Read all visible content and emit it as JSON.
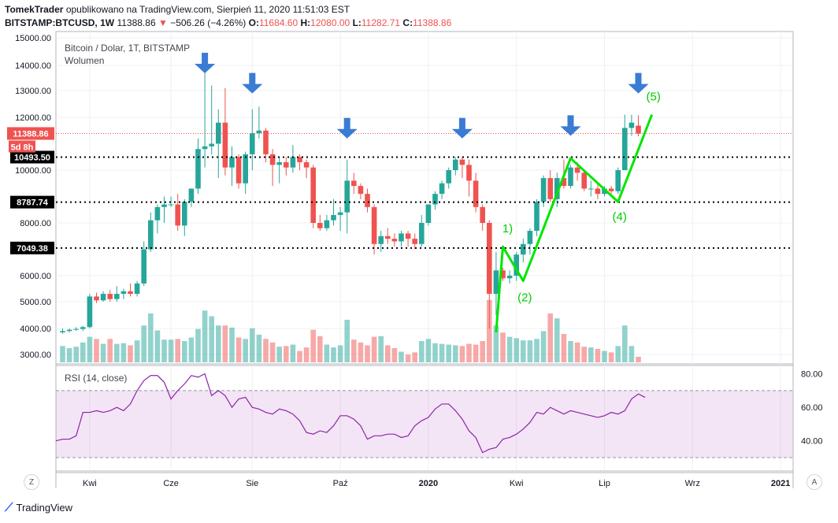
{
  "header": {
    "line1": "TomekTrader opublikowano na TradingView.com, Sierpień 11, 2020 11:51:03 EST",
    "author": "TomekTrader",
    "published": "opublikowano na TradingView.com, Sierpień 11, 2020 11:51:03 EST",
    "symbol": "BITSTAMP:BTCUSD, 1W",
    "price": "11388.86",
    "change": "−506.26 (−4.26%)",
    "open_label": "O:",
    "open": "11684.60",
    "high_label": "H:",
    "high": "12080.00",
    "low_label": "L:",
    "low": "11282.71",
    "close_label": "C:",
    "close": "11388.86"
  },
  "footer": {
    "brand": "TradingView"
  },
  "buttons": {
    "zoom": "Z",
    "auto": "A"
  },
  "chart_data": {
    "type": "candlestick",
    "legend": "Bitcoin / Dolar, 1T, BITSTAMP",
    "volume_label": "Wolumen",
    "ylim": [
      2650,
      15200
    ],
    "y_ticks": [
      3000,
      4000,
      5000,
      6000,
      8000,
      10000,
      12000,
      13000,
      14000,
      15000
    ],
    "y_tick_labels": [
      "3000.00",
      "4000.00",
      "5000.00",
      "6000.00",
      "8000.00",
      "10000.00",
      "12000.00",
      "13000.00",
      "14000.00",
      "15000.00"
    ],
    "levels": [
      {
        "value": 10493.5,
        "label": "10493.50"
      },
      {
        "value": 8787.74,
        "label": "8787.74"
      },
      {
        "value": 7049.38,
        "label": "7049.38"
      }
    ],
    "price_line": {
      "value": 11388.86,
      "label": "11388.86",
      "countdown": "5d 8h"
    },
    "x_ticks": [
      {
        "i": 4,
        "label": "Kwi"
      },
      {
        "i": 16,
        "label": "Cze"
      },
      {
        "i": 28,
        "label": "Sie"
      },
      {
        "i": 41,
        "label": "Paź"
      },
      {
        "i": 54,
        "label": "2020"
      },
      {
        "i": 67,
        "label": "Kwi"
      },
      {
        "i": 80,
        "label": "Lip"
      },
      {
        "i": 93,
        "label": "Wrz"
      },
      {
        "i": 106,
        "label": "2021"
      }
    ],
    "candles": [
      {
        "o": 3850,
        "h": 4000,
        "l": 3800,
        "c": 3900,
        "v": 0.23
      },
      {
        "o": 3900,
        "h": 4000,
        "l": 3850,
        "c": 3950,
        "v": 0.2
      },
      {
        "o": 3950,
        "h": 4050,
        "l": 3900,
        "c": 3980,
        "v": 0.22
      },
      {
        "o": 3980,
        "h": 4100,
        "l": 3900,
        "c": 4050,
        "v": 0.28
      },
      {
        "o": 4050,
        "h": 5300,
        "l": 4000,
        "c": 5200,
        "v": 0.36
      },
      {
        "o": 5200,
        "h": 5350,
        "l": 4950,
        "c": 5050,
        "v": 0.33
      },
      {
        "o": 5050,
        "h": 5400,
        "l": 5000,
        "c": 5300,
        "v": 0.26
      },
      {
        "o": 5300,
        "h": 5450,
        "l": 5000,
        "c": 5100,
        "v": 0.33
      },
      {
        "o": 5100,
        "h": 5600,
        "l": 5000,
        "c": 5300,
        "v": 0.26
      },
      {
        "o": 5300,
        "h": 5500,
        "l": 5100,
        "c": 5400,
        "v": 0.27
      },
      {
        "o": 5400,
        "h": 5700,
        "l": 5200,
        "c": 5300,
        "v": 0.24
      },
      {
        "o": 5300,
        "h": 5800,
        "l": 5200,
        "c": 5700,
        "v": 0.31
      },
      {
        "o": 5700,
        "h": 7300,
        "l": 5600,
        "c": 7000,
        "v": 0.52
      },
      {
        "o": 7000,
        "h": 8400,
        "l": 6900,
        "c": 8100,
        "v": 0.69
      },
      {
        "o": 8100,
        "h": 8700,
        "l": 7600,
        "c": 8600,
        "v": 0.45
      },
      {
        "o": 8600,
        "h": 9000,
        "l": 8000,
        "c": 8700,
        "v": 0.32
      },
      {
        "o": 8700,
        "h": 9000,
        "l": 8600,
        "c": 8700,
        "v": 0.32
      },
      {
        "o": 8700,
        "h": 9100,
        "l": 7700,
        "c": 7900,
        "v": 0.33
      },
      {
        "o": 7900,
        "h": 8900,
        "l": 7500,
        "c": 8800,
        "v": 0.3
      },
      {
        "o": 8800,
        "h": 9300,
        "l": 8600,
        "c": 9300,
        "v": 0.35
      },
      {
        "o": 9300,
        "h": 11200,
        "l": 9100,
        "c": 10800,
        "v": 0.47
      },
      {
        "o": 10800,
        "h": 13800,
        "l": 10100,
        "c": 10900,
        "v": 0.73
      },
      {
        "o": 10900,
        "h": 13200,
        "l": 10600,
        "c": 11000,
        "v": 0.65
      },
      {
        "o": 11000,
        "h": 12300,
        "l": 9700,
        "c": 11800,
        "v": 0.52
      },
      {
        "o": 11800,
        "h": 13100,
        "l": 9800,
        "c": 10100,
        "v": 0.52
      },
      {
        "o": 10100,
        "h": 10900,
        "l": 9400,
        "c": 10500,
        "v": 0.49
      },
      {
        "o": 10500,
        "h": 10600,
        "l": 9300,
        "c": 9500,
        "v": 0.35
      },
      {
        "o": 9500,
        "h": 10700,
        "l": 9100,
        "c": 10600,
        "v": 0.33
      },
      {
        "o": 10600,
        "h": 12300,
        "l": 10000,
        "c": 11400,
        "v": 0.48
      },
      {
        "o": 11400,
        "h": 12400,
        "l": 11200,
        "c": 11500,
        "v": 0.39
      },
      {
        "o": 11500,
        "h": 11600,
        "l": 10300,
        "c": 10600,
        "v": 0.33
      },
      {
        "o": 10600,
        "h": 10800,
        "l": 9400,
        "c": 10200,
        "v": 0.28
      },
      {
        "o": 10200,
        "h": 10500,
        "l": 9500,
        "c": 10300,
        "v": 0.22
      },
      {
        "o": 10300,
        "h": 10500,
        "l": 9800,
        "c": 10100,
        "v": 0.23
      },
      {
        "o": 10100,
        "h": 10950,
        "l": 9900,
        "c": 10500,
        "v": 0.25
      },
      {
        "o": 10500,
        "h": 10600,
        "l": 10000,
        "c": 10300,
        "v": 0.16
      },
      {
        "o": 10300,
        "h": 10400,
        "l": 9700,
        "c": 10100,
        "v": 0.21
      },
      {
        "o": 10100,
        "h": 10200,
        "l": 7800,
        "c": 8000,
        "v": 0.46
      },
      {
        "o": 8000,
        "h": 8300,
        "l": 7700,
        "c": 7800,
        "v": 0.37
      },
      {
        "o": 7800,
        "h": 8300,
        "l": 7700,
        "c": 8100,
        "v": 0.25
      },
      {
        "o": 8100,
        "h": 8900,
        "l": 7900,
        "c": 8300,
        "v": 0.21
      },
      {
        "o": 8300,
        "h": 8600,
        "l": 7700,
        "c": 8400,
        "v": 0.24
      },
      {
        "o": 8400,
        "h": 10400,
        "l": 7600,
        "c": 9600,
        "v": 0.6
      },
      {
        "o": 9600,
        "h": 9900,
        "l": 9100,
        "c": 9400,
        "v": 0.32
      },
      {
        "o": 9400,
        "h": 9500,
        "l": 8900,
        "c": 9100,
        "v": 0.28
      },
      {
        "o": 9100,
        "h": 9300,
        "l": 8400,
        "c": 8600,
        "v": 0.24
      },
      {
        "o": 8600,
        "h": 8700,
        "l": 6800,
        "c": 7200,
        "v": 0.36
      },
      {
        "o": 7200,
        "h": 7700,
        "l": 6900,
        "c": 7500,
        "v": 0.37
      },
      {
        "o": 7500,
        "h": 7800,
        "l": 7200,
        "c": 7400,
        "v": 0.24
      },
      {
        "o": 7400,
        "h": 7600,
        "l": 7100,
        "c": 7300,
        "v": 0.2
      },
      {
        "o": 7300,
        "h": 7700,
        "l": 7100,
        "c": 7600,
        "v": 0.15
      },
      {
        "o": 7600,
        "h": 7700,
        "l": 7100,
        "c": 7400,
        "v": 0.11
      },
      {
        "o": 7400,
        "h": 7600,
        "l": 7000,
        "c": 7200,
        "v": 0.14
      },
      {
        "o": 7200,
        "h": 8300,
        "l": 7100,
        "c": 8000,
        "v": 0.3
      },
      {
        "o": 8000,
        "h": 8700,
        "l": 7900,
        "c": 8700,
        "v": 0.33
      },
      {
        "o": 8700,
        "h": 9200,
        "l": 8500,
        "c": 9100,
        "v": 0.27
      },
      {
        "o": 9100,
        "h": 9600,
        "l": 8900,
        "c": 9500,
        "v": 0.26
      },
      {
        "o": 9500,
        "h": 10100,
        "l": 9300,
        "c": 10000,
        "v": 0.25
      },
      {
        "o": 10000,
        "h": 10500,
        "l": 9800,
        "c": 10400,
        "v": 0.24
      },
      {
        "o": 10400,
        "h": 10500,
        "l": 9700,
        "c": 10200,
        "v": 0.23
      },
      {
        "o": 10200,
        "h": 10400,
        "l": 9000,
        "c": 9600,
        "v": 0.26
      },
      {
        "o": 9600,
        "h": 9900,
        "l": 8400,
        "c": 8600,
        "v": 0.25
      },
      {
        "o": 8600,
        "h": 8700,
        "l": 7700,
        "c": 8000,
        "v": 0.3
      },
      {
        "o": 8000,
        "h": 8100,
        "l": 4000,
        "c": 5300,
        "v": 0.88
      },
      {
        "o": 5300,
        "h": 6900,
        "l": 4500,
        "c": 6200,
        "v": 0.52
      },
      {
        "o": 6200,
        "h": 6300,
        "l": 5800,
        "c": 5900,
        "v": 0.42
      },
      {
        "o": 5900,
        "h": 6200,
        "l": 5700,
        "c": 6000,
        "v": 0.36
      },
      {
        "o": 6000,
        "h": 6900,
        "l": 5800,
        "c": 6800,
        "v": 0.34
      },
      {
        "o": 6800,
        "h": 7400,
        "l": 6500,
        "c": 7200,
        "v": 0.31
      },
      {
        "o": 7200,
        "h": 7800,
        "l": 6800,
        "c": 7700,
        "v": 0.31
      },
      {
        "o": 7700,
        "h": 8900,
        "l": 7500,
        "c": 8800,
        "v": 0.33
      },
      {
        "o": 8800,
        "h": 9800,
        "l": 8600,
        "c": 9700,
        "v": 0.44
      },
      {
        "o": 9700,
        "h": 10000,
        "l": 8800,
        "c": 8900,
        "v": 0.69
      },
      {
        "o": 8900,
        "h": 9900,
        "l": 8600,
        "c": 9700,
        "v": 0.62
      },
      {
        "o": 9700,
        "h": 10400,
        "l": 9300,
        "c": 9400,
        "v": 0.4
      },
      {
        "o": 9400,
        "h": 10200,
        "l": 9300,
        "c": 10100,
        "v": 0.3
      },
      {
        "o": 10100,
        "h": 10300,
        "l": 9600,
        "c": 9900,
        "v": 0.28
      },
      {
        "o": 9900,
        "h": 10000,
        "l": 9200,
        "c": 9300,
        "v": 0.22
      },
      {
        "o": 9300,
        "h": 9600,
        "l": 9000,
        "c": 9300,
        "v": 0.21
      },
      {
        "o": 9300,
        "h": 9500,
        "l": 8900,
        "c": 9100,
        "v": 0.19
      },
      {
        "o": 9100,
        "h": 9400,
        "l": 9000,
        "c": 9300,
        "v": 0.16
      },
      {
        "o": 9300,
        "h": 9400,
        "l": 9100,
        "c": 9200,
        "v": 0.14
      },
      {
        "o": 9200,
        "h": 10100,
        "l": 9100,
        "c": 10000,
        "v": 0.23
      },
      {
        "o": 10000,
        "h": 12100,
        "l": 10000,
        "c": 11600,
        "v": 0.52
      },
      {
        "o": 11600,
        "h": 12100,
        "l": 11300,
        "c": 11800,
        "v": 0.23
      },
      {
        "o": 11684.6,
        "h": 12080,
        "l": 11282.71,
        "c": 11388.86,
        "v": 0.08
      }
    ],
    "arrows": [
      {
        "i": 21,
        "value": 14000
      },
      {
        "i": 28,
        "value": 13200
      },
      {
        "i": 42,
        "value": 11500
      },
      {
        "i": 59,
        "value": 11500
      },
      {
        "i": 75,
        "value": 11600
      },
      {
        "i": 85,
        "value": 13200
      }
    ],
    "wave": [
      {
        "i": 64,
        "value": 3850
      },
      {
        "i": 65,
        "value": 7100,
        "label": "1)"
      },
      {
        "i": 68,
        "value": 5800,
        "label": "(2)"
      },
      {
        "i": 75,
        "value": 10450
      },
      {
        "i": 82,
        "value": 8800,
        "label": "(4)"
      },
      {
        "i": 87,
        "value": 12100,
        "label": "(5)"
      }
    ],
    "rsi": {
      "label": "RSI (14, close)",
      "ylim": [
        22,
        85
      ],
      "band": [
        30,
        70
      ],
      "ticks": [
        40,
        60,
        80
      ],
      "tick_labels": [
        "40.00",
        "60.00",
        "80.00"
      ],
      "values": [
        40,
        41,
        41,
        43,
        57,
        57,
        58,
        57,
        58,
        60,
        58,
        62,
        70,
        76,
        79,
        79,
        75,
        65,
        70,
        74,
        79,
        78,
        80,
        67,
        70,
        67,
        60,
        65,
        66,
        60,
        59,
        57,
        56,
        59,
        58,
        56,
        52,
        45,
        44,
        46,
        45,
        49,
        55,
        55,
        53,
        49,
        41,
        43,
        43,
        44,
        44,
        42,
        43,
        49,
        52,
        54,
        59,
        62,
        62,
        58,
        53,
        46,
        42,
        33,
        35,
        36,
        41,
        42,
        44,
        47,
        51,
        57,
        56,
        60,
        58,
        56,
        58,
        57,
        56,
        55,
        54,
        55,
        57,
        56,
        58,
        65,
        68,
        66
      ]
    }
  }
}
